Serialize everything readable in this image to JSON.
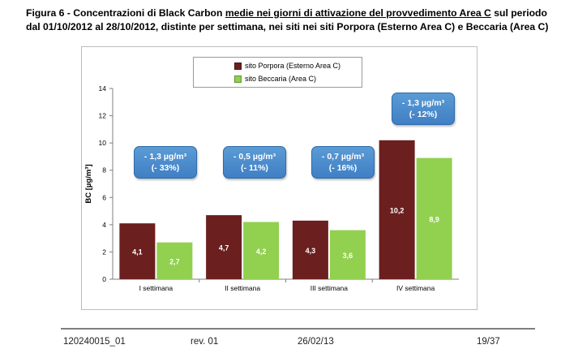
{
  "caption": {
    "part1": "Figura 6 - Concentrazioni di Black Carbon ",
    "underlined": "medie nei giorni di attivazione del provvedimento Area C",
    "part2": " sul periodo dal 01/10/2012 al 28/10/2012, distinte per settimana, nei siti nei siti Porpora (Esterno Area C) e Beccaria (Area C)"
  },
  "chart_data": {
    "type": "bar",
    "ylabel": "BC [µg/m³]",
    "ylim": [
      0,
      14
    ],
    "yticks": [
      "0",
      "2",
      "4",
      "6",
      "8",
      "10",
      "12",
      "14"
    ],
    "categories": [
      "I settimana",
      "II settimana",
      "III settimana",
      "IV settimana"
    ],
    "series": [
      {
        "name": "sito Porpora (Esterno Area C)",
        "color": "#6b1f1f",
        "values": [
          4.1,
          4.7,
          4.3,
          10.2
        ],
        "labels": [
          "4,1",
          "4,7",
          "4,3",
          "10,2"
        ]
      },
      {
        "name": "sito Beccaria (Area C)",
        "color": "#92d050",
        "values": [
          2.7,
          4.2,
          3.6,
          8.9
        ],
        "labels": [
          "2,7",
          "4,2",
          "3,6",
          "8,9"
        ]
      }
    ],
    "callouts": [
      {
        "line1": "- 1,3 µg/m³",
        "line2": "(- 33%)"
      },
      {
        "line1": "- 0,5 µg/m³",
        "line2": "(- 11%)"
      },
      {
        "line1": "- 0,7 µg/m³",
        "line2": "(- 16%)"
      },
      {
        "line1": "- 1,3 µg/m³",
        "line2": "(- 12%)"
      }
    ],
    "grid": false,
    "legend_position": "top-center"
  },
  "footer": {
    "doc_id": "120240015_01",
    "revision": "rev. 01",
    "date": "26/02/13",
    "page": "19/37"
  }
}
